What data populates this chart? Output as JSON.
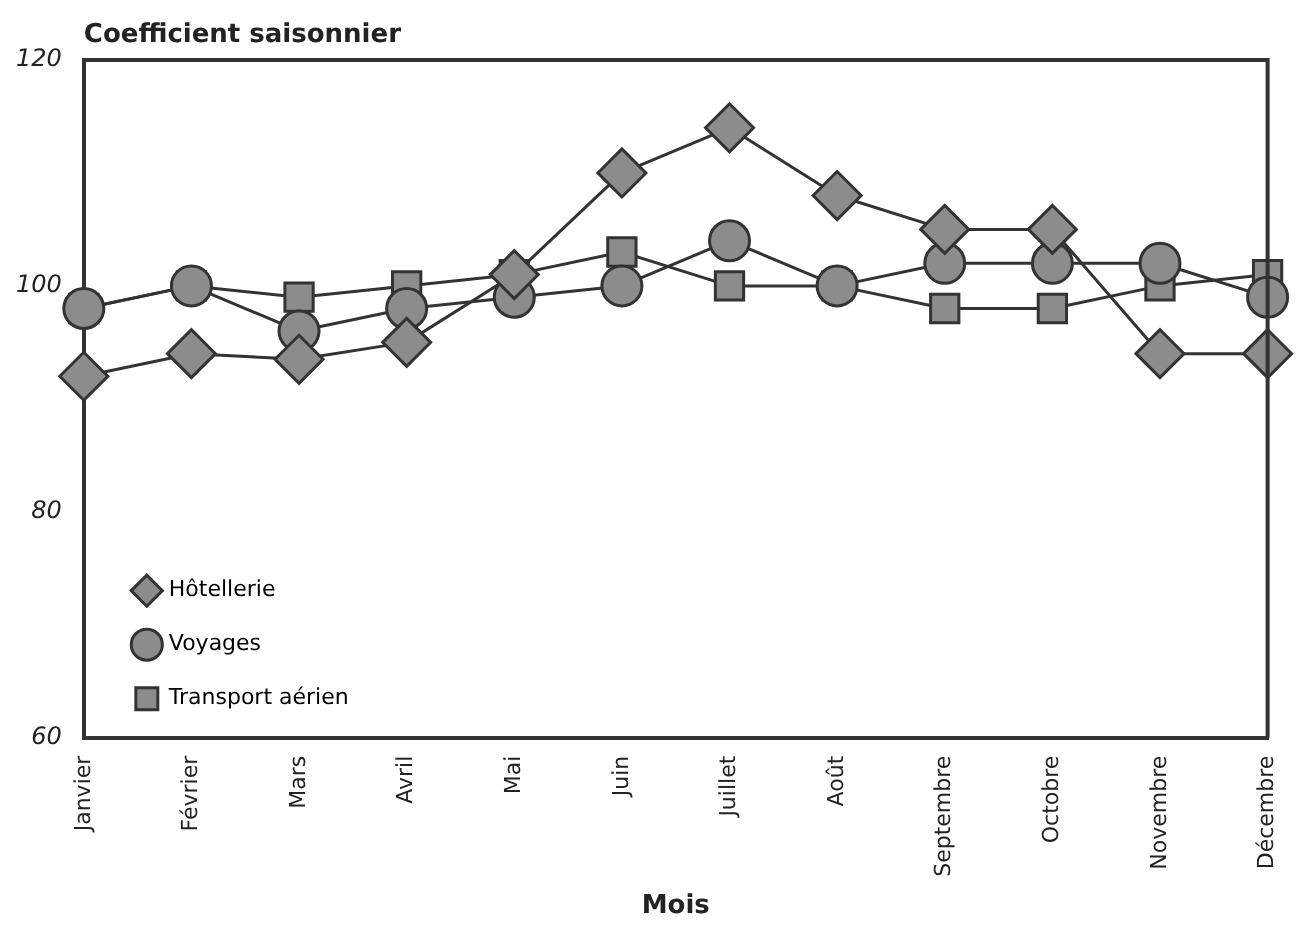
{
  "chart_data": {
    "type": "line",
    "ylabel": "Coefficient saisonnier",
    "xlabel": "Mois",
    "categories": [
      "Janvier",
      "Février",
      "Mars",
      "Avril",
      "Mai",
      "Juin",
      "Juillet",
      "Août",
      "Septembre",
      "Octobre",
      "Novembre",
      "Décembre"
    ],
    "series": [
      {
        "name": "Hôtellerie",
        "color": "#8c8c8c",
        "marker": "diamond",
        "values": [
          92,
          94,
          93.5,
          95,
          101,
          110,
          114,
          108,
          105,
          105,
          94,
          94
        ]
      },
      {
        "name": "Voyages",
        "color": "#8c8c8c",
        "marker": "circle",
        "values": [
          98,
          100,
          96,
          98,
          99,
          100,
          104,
          100,
          102,
          102,
          102,
          99
        ]
      },
      {
        "name": "Transport aérien",
        "color": "#8c8c8c",
        "marker": "square",
        "values": [
          98,
          100,
          99,
          100,
          101,
          103,
          100,
          100,
          98,
          98,
          100,
          101
        ]
      }
    ],
    "ylim": [
      60,
      120
    ],
    "yticks": [
      60,
      80,
      100,
      120
    ],
    "grid": false,
    "legend": "bottom left",
    "line_style": "solid"
  }
}
